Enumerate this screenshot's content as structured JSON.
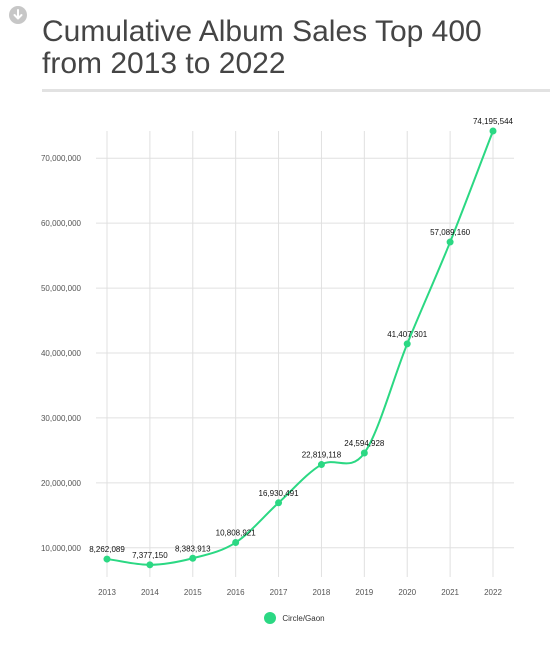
{
  "title": "Cumulative Album Sales Top 400 from 2013 to 2022",
  "download_icon": "download-arrow-icon",
  "colors": {
    "line": "#2bd883",
    "grid": "#e0e0e0",
    "title": "#454545"
  },
  "chart_data": {
    "type": "line",
    "title": "Cumulative Album Sales Top 400 from 2013 to 2022",
    "xlabel": "",
    "ylabel": "",
    "categories": [
      "2013",
      "2014",
      "2015",
      "2016",
      "2017",
      "2018",
      "2019",
      "2020",
      "2021",
      "2022"
    ],
    "series": [
      {
        "name": "Circle/Gaon",
        "values": [
          8262089,
          7377150,
          8383913,
          10808921,
          16930491,
          22819118,
          24594928,
          41407301,
          57089160,
          74195544
        ],
        "labels": [
          "8,262,089",
          "7,377,150",
          "8,383,913",
          "10,808,921",
          "16,930,491",
          "22,819,118",
          "24,594,928",
          "41,407,301",
          "57,089,160",
          "74,195,544"
        ]
      }
    ],
    "yticks": [
      10000000,
      20000000,
      30000000,
      40000000,
      50000000,
      60000000,
      70000000
    ],
    "ytick_labels": [
      "10,000,000",
      "20,000,000",
      "30,000,000",
      "40,000,000",
      "50,000,000",
      "60,000,000",
      "70,000,000"
    ],
    "ylim": [
      5500000,
      74195544
    ],
    "grid": true,
    "legend_position": "bottom",
    "smooth": true
  }
}
